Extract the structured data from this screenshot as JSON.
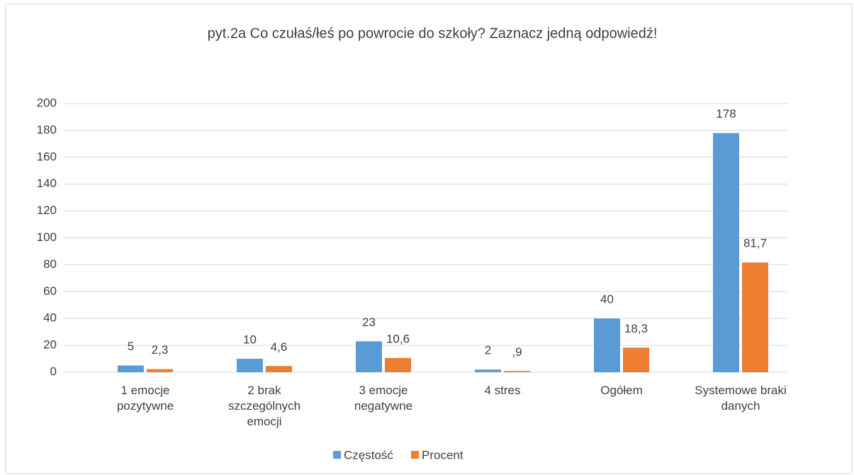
{
  "chart_data": {
    "type": "bar",
    "title": "pyt.2a Co czułaś/łeś po powrocie do szkoły? Zaznacz jedną odpowiedź!",
    "categories": [
      "1 emocje pozytywne",
      "2 brak szczególnych emocji",
      "3 emocje negatywne",
      "4 stres",
      "Ogółem",
      "Systemowe braki danych"
    ],
    "series": [
      {
        "name": "Częstość",
        "color": "#5b9bd5",
        "values": [
          5,
          10,
          23,
          2,
          40,
          178
        ]
      },
      {
        "name": "Procent",
        "color": "#ed7d31",
        "values": [
          2.3,
          4.6,
          10.6,
          0.9,
          18.3,
          81.7
        ],
        "value_labels": [
          "2,3",
          "4,6",
          "10,6",
          ",9",
          "18,3",
          "81,7"
        ]
      }
    ],
    "ylim": [
      0,
      200
    ],
    "yticks": [
      0,
      20,
      40,
      60,
      80,
      100,
      120,
      140,
      160,
      180,
      200
    ],
    "grid": true,
    "legend": "bottom"
  }
}
